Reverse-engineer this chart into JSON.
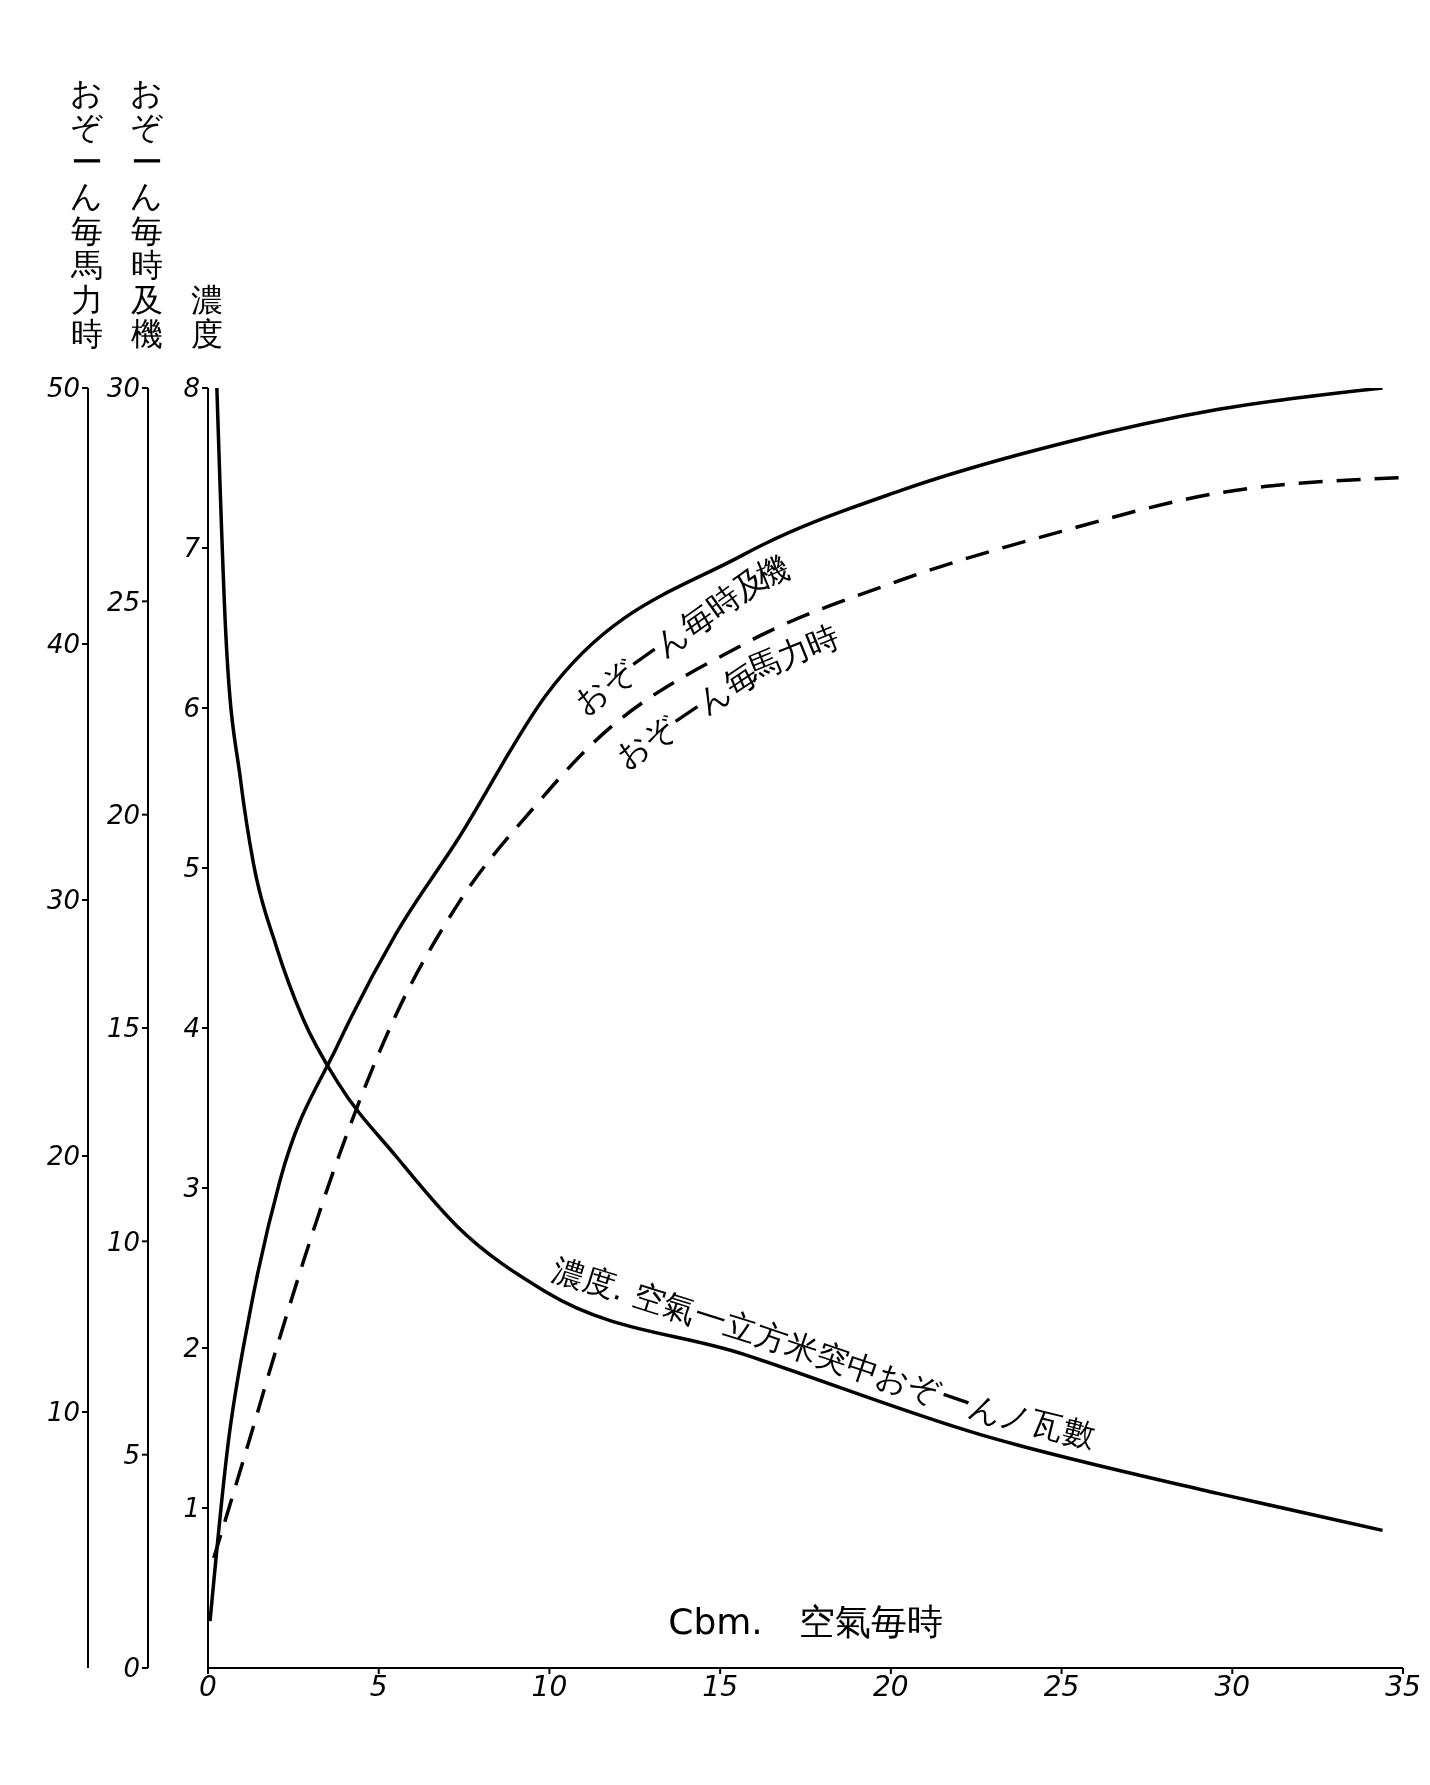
{
  "chart_data": {
    "type": "line",
    "xlabel": "Cbm.　空氣毎時",
    "ylabel": "濃度",
    "y2label": "おぞーん毎時及機",
    "y3label": "おぞーん毎馬力時",
    "xlim": [
      0,
      35
    ],
    "xticks": [
      0,
      5,
      10,
      15,
      20,
      25,
      30,
      35
    ],
    "ylim": [
      0,
      8
    ],
    "yticks": [
      1,
      2,
      3,
      4,
      5,
      6,
      7,
      8
    ],
    "y2lim": [
      0,
      30
    ],
    "y2ticks": [
      0,
      5,
      10,
      15,
      20,
      25,
      30
    ],
    "y3lim": [
      0,
      50
    ],
    "y3ticks": [
      10,
      20,
      30,
      40,
      50
    ],
    "series": [
      {
        "name": "濃度. 空氣一立方米突中おぞーんノ瓦數",
        "color": "#000000",
        "line_style": "solid",
        "axis": "y",
        "x": [
          0.26,
          0.52,
          0.96,
          1.33,
          2.0,
          2.8,
          3.8,
          5.5,
          7.3,
          9.9,
          15.7,
          22.6,
          29.6,
          34.4
        ],
        "values": [
          8,
          6.47,
          5.54,
          5.03,
          4.51,
          4.05,
          3.66,
          3.2,
          2.76,
          2.35,
          1.96,
          1.46,
          1.09,
          0.86
        ]
      },
      {
        "name": "おぞーん毎時及機",
        "color": "#000000",
        "line_style": "solid",
        "axis": "y2",
        "x": [
          0.06,
          0.58,
          1.22,
          2.1,
          3.8,
          5.5,
          7.3,
          9.9,
          15.7,
          20.3,
          25.0,
          29.6,
          34.4
        ],
        "values": [
          1.1,
          5.2,
          8.3,
          11.4,
          14.6,
          17.2,
          19.4,
          22.8,
          26.1,
          27.6,
          28.7,
          29.5,
          30.0
        ]
      },
      {
        "name": "おぞーん毎馬力時",
        "color": "#000000",
        "line_style": "dashed",
        "axis": "y3",
        "x": [
          0.17,
          1.1,
          2.1,
          3.7,
          5.5,
          7.3,
          9.6,
          11.1,
          15.7,
          20.3,
          25.0,
          29.6,
          35
        ],
        "values": [
          4.3,
          8.4,
          12.9,
          19.5,
          25.5,
          29.8,
          33.7,
          35.9,
          40.0,
          42.5,
          44.4,
          45.9,
          46.5
        ]
      }
    ]
  }
}
